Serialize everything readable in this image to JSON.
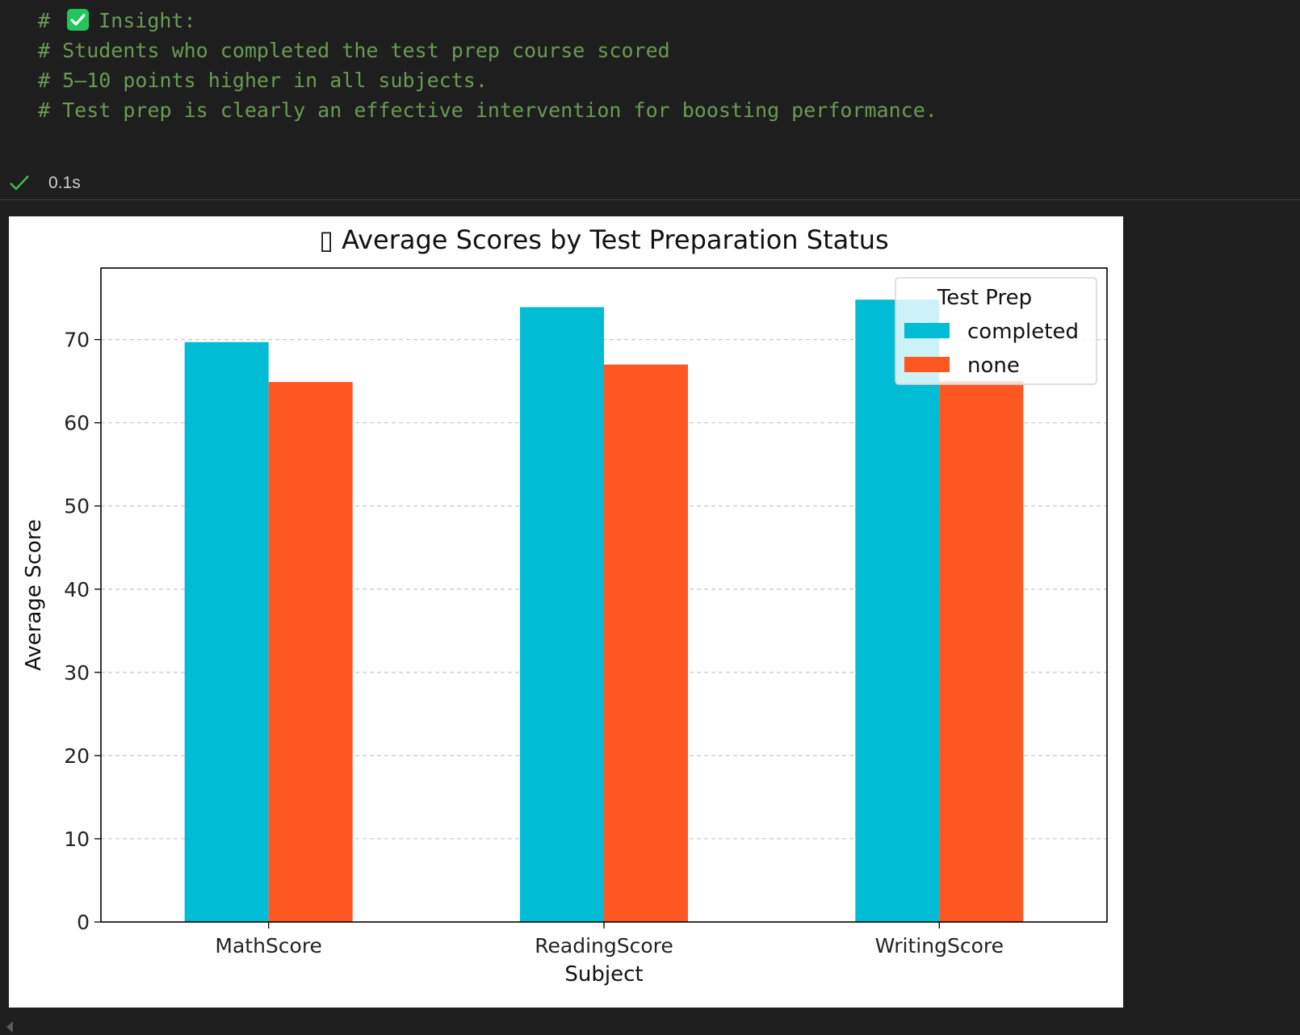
{
  "notebook": {
    "comment_lines": [
      "# ",
      "Insight:",
      "# Students who completed the test prep course scored",
      "# 5–10 points higher in all subjects.",
      "# Test prep is clearly an effective intervention for boosting performance."
    ],
    "status": {
      "icon": "checkmark-icon",
      "elapsed": "0.1s"
    },
    "colors": {
      "background": "#1e1e1e",
      "comment": "#6a9955",
      "status_check": "#3fb950"
    }
  },
  "chart_data": {
    "type": "bar",
    "title": "▯ Average Scores by Test Preparation Status",
    "xlabel": "Subject",
    "ylabel": "Average Score",
    "categories": [
      "MathScore",
      "ReadingScore",
      "WritingScore"
    ],
    "series": [
      {
        "name": "completed",
        "values": [
          69.7,
          73.9,
          74.8
        ],
        "color": "#00bcd4"
      },
      {
        "name": "none",
        "values": [
          64.9,
          67.0,
          65.0
        ],
        "color": "#ff5722"
      }
    ],
    "ylim": [
      0,
      78.6
    ],
    "yticks": [
      "0",
      "10",
      "20",
      "30",
      "40",
      "50",
      "60",
      "70"
    ],
    "grid": "horizontal dashed",
    "legend": {
      "title": "Test Prep",
      "placement": "top-right"
    }
  }
}
